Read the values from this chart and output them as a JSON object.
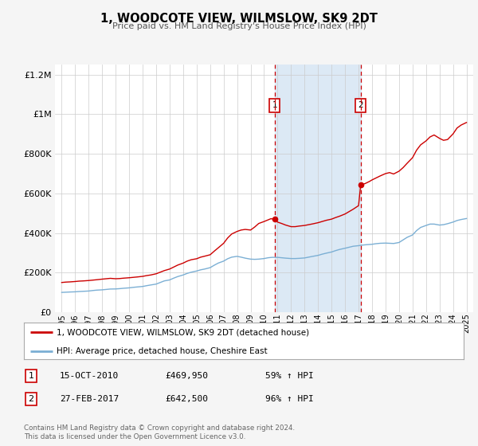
{
  "title": "1, WOODCOTE VIEW, WILMSLOW, SK9 2DT",
  "subtitle": "Price paid vs. HM Land Registry's House Price Index (HPI)",
  "background_color": "#f5f5f5",
  "plot_bg_color": "#ffffff",
  "shaded_region_color": "#dce9f5",
  "red_line_color": "#cc0000",
  "blue_line_color": "#7bafd4",
  "marker1_date": 2010.79,
  "marker2_date": 2017.16,
  "marker1_price": 469950,
  "marker2_price": 642500,
  "marker1_label": "15-OCT-2010",
  "marker2_label": "27-FEB-2017",
  "marker1_pct": "59% ↑ HPI",
  "marker2_pct": "96% ↑ HPI",
  "ylim": [
    0,
    1250000
  ],
  "xlim_start": 1994.5,
  "xlim_end": 2025.5,
  "ylabel_ticks": [
    0,
    200000,
    400000,
    600000,
    800000,
    1000000,
    1200000
  ],
  "ylabel_labels": [
    "£0",
    "£200K",
    "£400K",
    "£600K",
    "£800K",
    "£1M",
    "£1.2M"
  ],
  "xticks": [
    1995,
    1996,
    1997,
    1998,
    1999,
    2000,
    2001,
    2002,
    2003,
    2004,
    2005,
    2006,
    2007,
    2008,
    2009,
    2010,
    2011,
    2012,
    2013,
    2014,
    2015,
    2016,
    2017,
    2018,
    2019,
    2020,
    2021,
    2022,
    2023,
    2024,
    2025
  ],
  "legend_label_red": "1, WOODCOTE VIEW, WILMSLOW, SK9 2DT (detached house)",
  "legend_label_blue": "HPI: Average price, detached house, Cheshire East",
  "footer_line1": "Contains HM Land Registry data © Crown copyright and database right 2024.",
  "footer_line2": "This data is licensed under the Open Government Licence v3.0.",
  "red_data": [
    [
      1995.0,
      150000
    ],
    [
      1995.3,
      152000
    ],
    [
      1995.6,
      153000
    ],
    [
      1996.0,
      155000
    ],
    [
      1996.3,
      157000
    ],
    [
      1996.6,
      158000
    ],
    [
      1997.0,
      160000
    ],
    [
      1997.3,
      162000
    ],
    [
      1997.6,
      164000
    ],
    [
      1998.0,
      167000
    ],
    [
      1998.3,
      169000
    ],
    [
      1998.6,
      171000
    ],
    [
      1999.0,
      169000
    ],
    [
      1999.3,
      170000
    ],
    [
      1999.6,
      172000
    ],
    [
      2000.0,
      174000
    ],
    [
      2000.3,
      176000
    ],
    [
      2000.6,
      178000
    ],
    [
      2001.0,
      181000
    ],
    [
      2001.3,
      185000
    ],
    [
      2001.6,
      188000
    ],
    [
      2002.0,
      194000
    ],
    [
      2002.3,
      202000
    ],
    [
      2002.6,
      210000
    ],
    [
      2003.0,
      218000
    ],
    [
      2003.3,
      228000
    ],
    [
      2003.6,
      238000
    ],
    [
      2004.0,
      248000
    ],
    [
      2004.3,
      258000
    ],
    [
      2004.6,
      265000
    ],
    [
      2005.0,
      270000
    ],
    [
      2005.3,
      278000
    ],
    [
      2005.6,
      283000
    ],
    [
      2006.0,
      290000
    ],
    [
      2006.3,
      308000
    ],
    [
      2006.6,
      325000
    ],
    [
      2007.0,
      348000
    ],
    [
      2007.3,
      375000
    ],
    [
      2007.6,
      395000
    ],
    [
      2008.0,
      408000
    ],
    [
      2008.3,
      415000
    ],
    [
      2008.6,
      418000
    ],
    [
      2009.0,
      415000
    ],
    [
      2009.3,
      430000
    ],
    [
      2009.6,
      448000
    ],
    [
      2010.0,
      458000
    ],
    [
      2010.5,
      472000
    ],
    [
      2010.79,
      469950
    ],
    [
      2011.0,
      455000
    ],
    [
      2011.3,
      448000
    ],
    [
      2011.6,
      440000
    ],
    [
      2012.0,
      432000
    ],
    [
      2012.3,
      432000
    ],
    [
      2012.6,
      435000
    ],
    [
      2013.0,
      438000
    ],
    [
      2013.3,
      442000
    ],
    [
      2013.6,
      446000
    ],
    [
      2014.0,
      452000
    ],
    [
      2014.3,
      458000
    ],
    [
      2014.6,
      464000
    ],
    [
      2015.0,
      470000
    ],
    [
      2015.3,
      478000
    ],
    [
      2015.6,
      485000
    ],
    [
      2016.0,
      496000
    ],
    [
      2016.3,
      508000
    ],
    [
      2016.6,
      520000
    ],
    [
      2017.0,
      538000
    ],
    [
      2017.16,
      642500
    ],
    [
      2017.5,
      650000
    ],
    [
      2017.8,
      660000
    ],
    [
      2018.0,
      668000
    ],
    [
      2018.3,
      678000
    ],
    [
      2018.6,
      688000
    ],
    [
      2019.0,
      700000
    ],
    [
      2019.3,
      705000
    ],
    [
      2019.6,
      698000
    ],
    [
      2020.0,
      712000
    ],
    [
      2020.3,
      730000
    ],
    [
      2020.6,
      752000
    ],
    [
      2021.0,
      780000
    ],
    [
      2021.3,
      818000
    ],
    [
      2021.6,
      845000
    ],
    [
      2022.0,
      865000
    ],
    [
      2022.3,
      885000
    ],
    [
      2022.6,
      895000
    ],
    [
      2023.0,
      878000
    ],
    [
      2023.3,
      868000
    ],
    [
      2023.6,
      872000
    ],
    [
      2024.0,
      900000
    ],
    [
      2024.3,
      930000
    ],
    [
      2024.6,
      945000
    ],
    [
      2025.0,
      958000
    ]
  ],
  "blue_data": [
    [
      1995.0,
      100000
    ],
    [
      1995.3,
      101000
    ],
    [
      1995.6,
      102000
    ],
    [
      1996.0,
      103000
    ],
    [
      1996.3,
      104500
    ],
    [
      1996.6,
      105500
    ],
    [
      1997.0,
      107000
    ],
    [
      1997.3,
      109500
    ],
    [
      1997.6,
      111500
    ],
    [
      1998.0,
      113000
    ],
    [
      1998.3,
      115000
    ],
    [
      1998.6,
      117000
    ],
    [
      1999.0,
      117500
    ],
    [
      1999.3,
      119000
    ],
    [
      1999.6,
      121000
    ],
    [
      2000.0,
      123000
    ],
    [
      2000.3,
      125500
    ],
    [
      2000.6,
      127500
    ],
    [
      2001.0,
      130000
    ],
    [
      2001.3,
      134000
    ],
    [
      2001.6,
      137500
    ],
    [
      2002.0,
      142000
    ],
    [
      2002.3,
      150000
    ],
    [
      2002.6,
      158000
    ],
    [
      2003.0,
      163000
    ],
    [
      2003.3,
      172000
    ],
    [
      2003.6,
      180000
    ],
    [
      2004.0,
      188000
    ],
    [
      2004.3,
      196000
    ],
    [
      2004.6,
      202000
    ],
    [
      2005.0,
      208000
    ],
    [
      2005.3,
      214000
    ],
    [
      2005.6,
      218000
    ],
    [
      2006.0,
      225000
    ],
    [
      2006.3,
      237000
    ],
    [
      2006.6,
      248000
    ],
    [
      2007.0,
      258000
    ],
    [
      2007.3,
      270000
    ],
    [
      2007.6,
      278000
    ],
    [
      2008.0,
      282000
    ],
    [
      2008.3,
      278000
    ],
    [
      2008.6,
      273000
    ],
    [
      2009.0,
      268000
    ],
    [
      2009.3,
      267000
    ],
    [
      2009.6,
      268000
    ],
    [
      2010.0,
      271000
    ],
    [
      2010.3,
      275000
    ],
    [
      2010.6,
      277000
    ],
    [
      2011.0,
      277000
    ],
    [
      2011.3,
      275000
    ],
    [
      2011.6,
      273000
    ],
    [
      2012.0,
      271000
    ],
    [
      2012.3,
      271000
    ],
    [
      2012.6,
      272000
    ],
    [
      2013.0,
      274000
    ],
    [
      2013.3,
      278000
    ],
    [
      2013.6,
      282000
    ],
    [
      2014.0,
      287000
    ],
    [
      2014.3,
      293000
    ],
    [
      2014.6,
      298000
    ],
    [
      2015.0,
      304000
    ],
    [
      2015.3,
      311000
    ],
    [
      2015.6,
      317000
    ],
    [
      2016.0,
      323000
    ],
    [
      2016.3,
      328000
    ],
    [
      2016.6,
      333000
    ],
    [
      2017.0,
      336000
    ],
    [
      2017.3,
      339000
    ],
    [
      2017.6,
      341000
    ],
    [
      2018.0,
      343000
    ],
    [
      2018.3,
      346000
    ],
    [
      2018.6,
      348000
    ],
    [
      2019.0,
      349000
    ],
    [
      2019.3,
      348000
    ],
    [
      2019.6,
      347000
    ],
    [
      2020.0,
      352000
    ],
    [
      2020.3,
      365000
    ],
    [
      2020.6,
      378000
    ],
    [
      2021.0,
      390000
    ],
    [
      2021.3,
      412000
    ],
    [
      2021.6,
      428000
    ],
    [
      2022.0,
      438000
    ],
    [
      2022.3,
      445000
    ],
    [
      2022.6,
      445000
    ],
    [
      2023.0,
      440000
    ],
    [
      2023.3,
      442000
    ],
    [
      2023.6,
      447000
    ],
    [
      2024.0,
      455000
    ],
    [
      2024.3,
      463000
    ],
    [
      2024.6,
      468000
    ],
    [
      2025.0,
      473000
    ]
  ]
}
